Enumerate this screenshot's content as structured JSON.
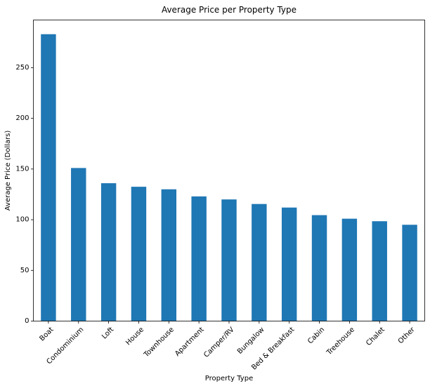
{
  "chart_data": {
    "type": "bar",
    "title": "Average Price per Property Type",
    "xlabel": "Property Type",
    "ylabel": "Average Price (Dollars)",
    "categories": [
      "Boat",
      "Condominium",
      "Loft",
      "House",
      "Townhouse",
      "Apartment",
      "Camper/RV",
      "Bungalow",
      "Bed & Breakfast",
      "Cabin",
      "Treehouse",
      "Chalet",
      "Other"
    ],
    "values": [
      283,
      151,
      136,
      132.5,
      130,
      123,
      120,
      115.5,
      112,
      104.5,
      101,
      98.5,
      95
    ],
    "ylim": [
      0,
      297
    ],
    "yticks": [
      0,
      50,
      100,
      150,
      200,
      250
    ],
    "bar_color": "#1f77b4",
    "grid": false,
    "legend": false
  }
}
